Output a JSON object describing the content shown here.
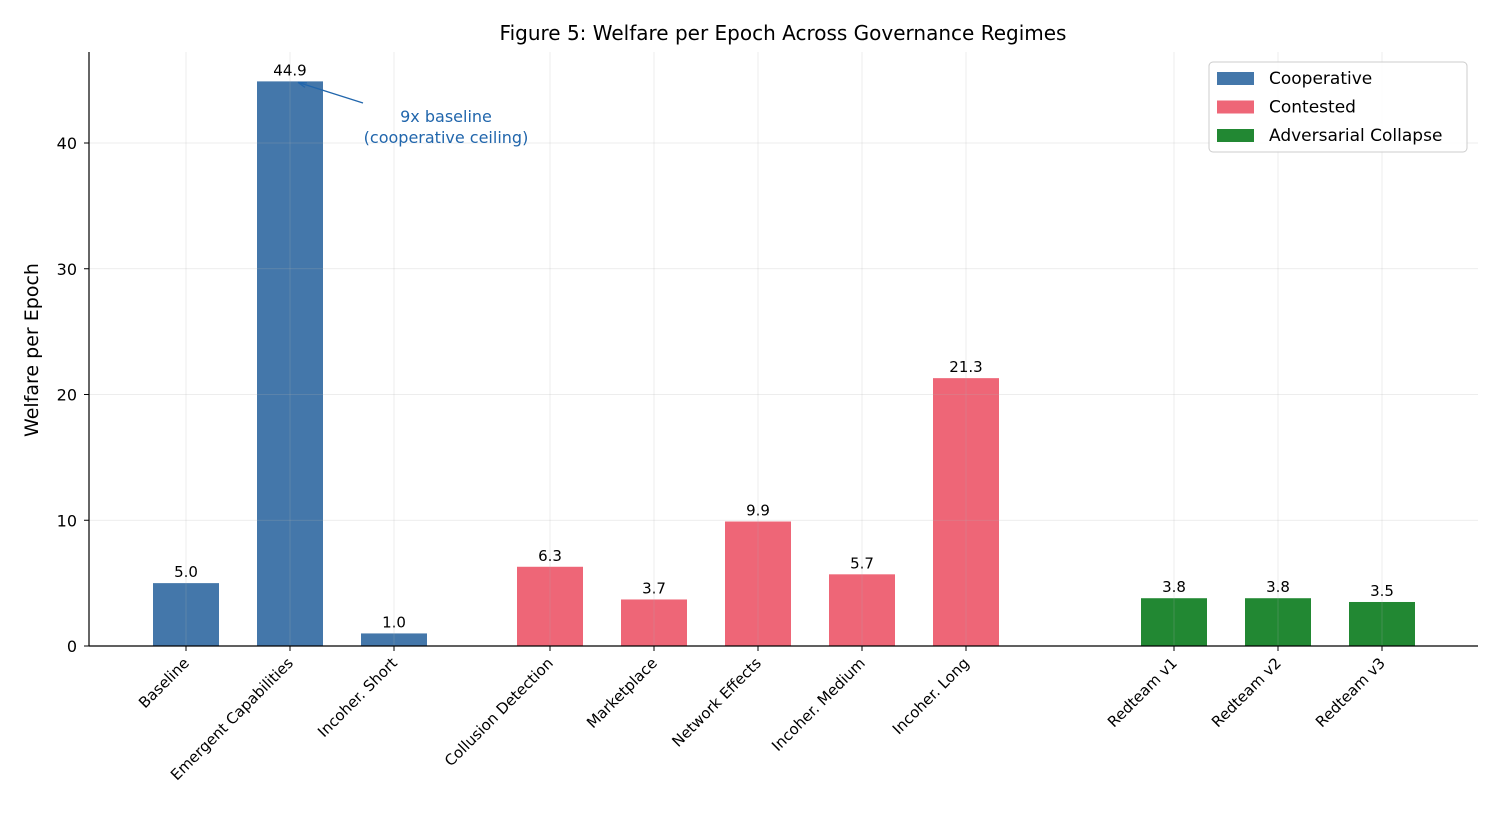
{
  "chart_data": {
    "type": "bar",
    "title": "Figure 5: Welfare per Epoch Across Governance Regimes",
    "xlabel": "",
    "ylabel": "Welfare per Epoch",
    "ylim": [
      0,
      47.5
    ],
    "yticks": [
      0,
      10,
      20,
      30,
      40
    ],
    "grid": true,
    "legend_position": "top-right",
    "categories": [
      "Baseline",
      "Emergent Capabilities",
      "Incoher. Short",
      "Collusion Detection",
      "Marketplace",
      "Network Effects",
      "Incoher. Medium",
      "Incoher. Long",
      "Redteam v1",
      "Redteam v2",
      "Redteam v3"
    ],
    "x": [
      0,
      1,
      2,
      3.5,
      4.5,
      5.5,
      6.5,
      7.5,
      9.5,
      10.5,
      11.5
    ],
    "values": [
      5.0,
      44.9,
      1.0,
      6.3,
      3.7,
      9.9,
      5.7,
      21.3,
      3.8,
      3.8,
      3.5
    ],
    "labels": [
      "5.0",
      "44.9",
      "1.0",
      "6.3",
      "3.7",
      "9.9",
      "5.7",
      "21.3",
      "3.8",
      "3.8",
      "3.5"
    ],
    "groups": [
      0,
      0,
      0,
      1,
      1,
      1,
      1,
      1,
      2,
      2,
      2
    ],
    "series": [
      {
        "name": "Cooperative",
        "color": "#4477aa"
      },
      {
        "name": "Contested",
        "color": "#ee6677"
      },
      {
        "name": "Adversarial Collapse",
        "color": "#228833"
      }
    ],
    "annotation": {
      "lines": [
        "9x baseline",
        "(cooperative ceiling)"
      ],
      "points_to_category": "Emergent Capabilities",
      "color": "#2166ac"
    }
  }
}
